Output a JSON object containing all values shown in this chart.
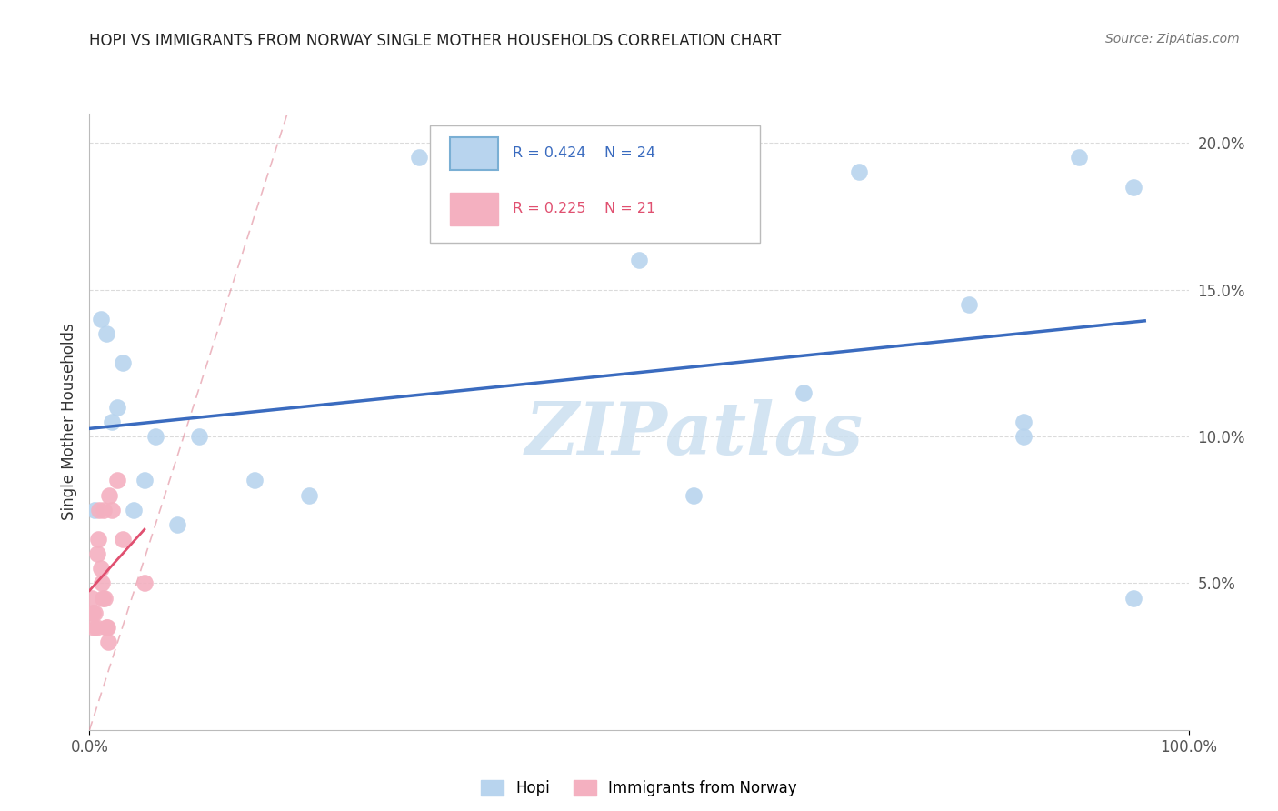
{
  "title": "HOPI VS IMMIGRANTS FROM NORWAY SINGLE MOTHER HOUSEHOLDS CORRELATION CHART",
  "source": "Source: ZipAtlas.com",
  "ylabel": "Single Mother Households",
  "xlim": [
    0,
    100
  ],
  "ylim": [
    0,
    21
  ],
  "hopi_x": [
    0.5,
    1.0,
    1.5,
    2.0,
    2.5,
    3.0,
    4.0,
    5.0,
    6.0,
    8.0,
    10.0,
    15.0,
    20.0,
    30.0,
    50.0,
    65.0,
    80.0,
    85.0,
    90.0,
    95.0,
    55.0,
    70.0,
    85.0,
    95.0
  ],
  "hopi_y": [
    7.5,
    14.0,
    13.5,
    10.5,
    11.0,
    12.5,
    7.5,
    8.5,
    10.0,
    7.0,
    10.0,
    8.5,
    8.0,
    19.5,
    16.0,
    11.5,
    14.5,
    10.0,
    19.5,
    4.5,
    8.0,
    19.0,
    10.5,
    18.5
  ],
  "norway_x": [
    0.2,
    0.3,
    0.4,
    0.5,
    0.6,
    0.7,
    0.8,
    0.9,
    1.0,
    1.1,
    1.2,
    1.3,
    1.4,
    1.5,
    1.6,
    1.7,
    1.8,
    2.0,
    2.5,
    3.0,
    5.0
  ],
  "norway_y": [
    4.5,
    4.0,
    3.5,
    4.0,
    3.5,
    6.0,
    6.5,
    7.5,
    5.5,
    5.0,
    4.5,
    7.5,
    4.5,
    3.5,
    3.5,
    3.0,
    8.0,
    7.5,
    8.5,
    6.5,
    5.0
  ],
  "hopi_line_color": "#3a6bbf",
  "norway_line_color": "#e05070",
  "hopi_scatter_color": "#b8d4ee",
  "norway_scatter_color": "#f4b0c0",
  "watermark_color": "#cce0f0",
  "background_color": "#ffffff",
  "grid_color": "#cccccc"
}
